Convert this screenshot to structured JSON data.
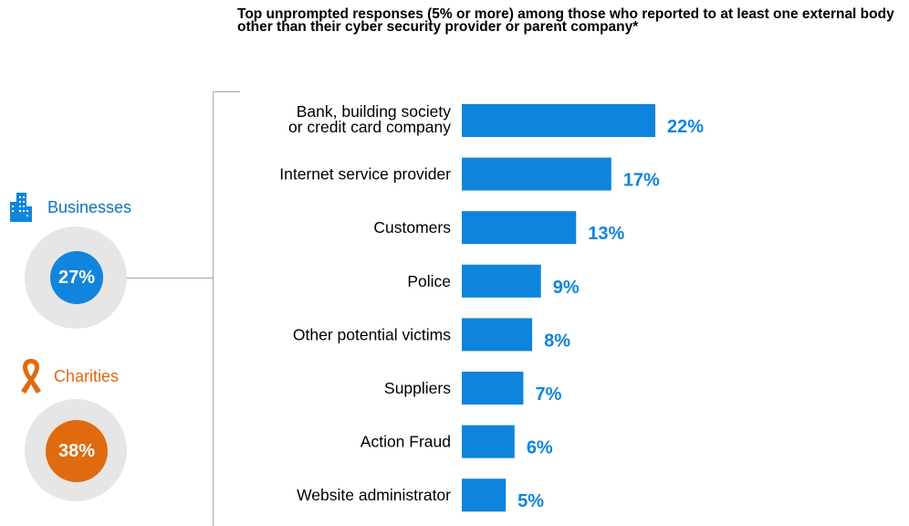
{
  "chart_data": {
    "type": "bar",
    "orientation": "horizontal",
    "title": "Top unprompted responses (5% or more) among those who reported to at least one external body other than their cyber security provider or parent company*",
    "categories": [
      "Bank, building society or credit card company",
      "Internet service provider",
      "Customers",
      "Police",
      "Other potential victims",
      "Suppliers",
      "Action Fraud",
      "Website administrator"
    ],
    "values": [
      22,
      17,
      13,
      9,
      8,
      7,
      6,
      5
    ],
    "value_labels": [
      "22%",
      "17%",
      "13%",
      "9%",
      "8%",
      "7%",
      "6%",
      "5%"
    ],
    "xlim": [
      0,
      22
    ],
    "grid": false,
    "bar_color": "#0e84dc",
    "label_color": "#0e84dc"
  },
  "groups": {
    "businesses": {
      "label": "Businesses",
      "value": "27%",
      "color": "#1185dd",
      "text_color": "#1173bb",
      "icon": "office-building-icon"
    },
    "charities": {
      "label": "Charities",
      "value": "38%",
      "color": "#e06a0f",
      "text_color": "#e06a0f",
      "icon": "awareness-ribbon-icon"
    }
  }
}
